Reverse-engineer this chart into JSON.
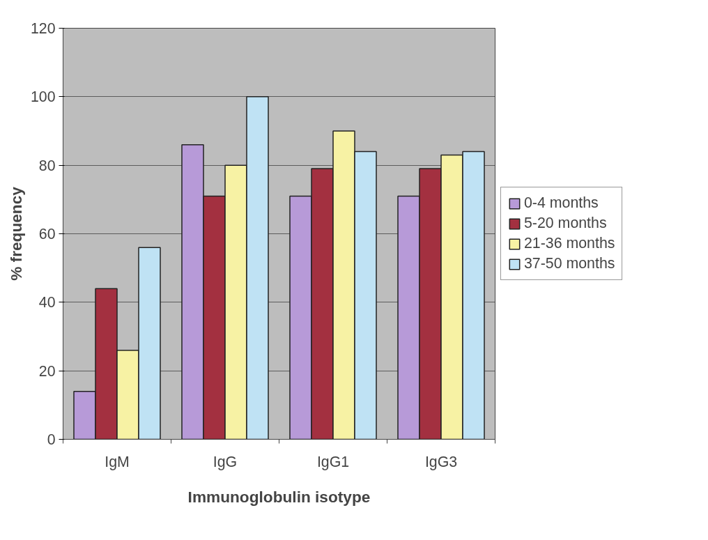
{
  "chart_data": {
    "type": "bar",
    "xlabel": "Immunoglobulin isotype",
    "ylabel": "% frequency",
    "categories": [
      "IgM",
      "IgG",
      "IgG1",
      "IgG3"
    ],
    "series": [
      {
        "name": "0-4 months",
        "color": "#b79ad8",
        "values": [
          14,
          86,
          71,
          71
        ]
      },
      {
        "name": "5-20 months",
        "color": "#a33040",
        "values": [
          44,
          71,
          79,
          79
        ]
      },
      {
        "name": "21-36 months",
        "color": "#f7f2a4",
        "values": [
          26,
          80,
          90,
          83
        ]
      },
      {
        "name": "37-50 months",
        "color": "#bfe2f4",
        "values": [
          56,
          100,
          84,
          84
        ]
      }
    ],
    "ylim": [
      0,
      120
    ],
    "yticks": [
      0,
      20,
      40,
      60,
      80,
      100,
      120
    ],
    "grid": "y",
    "legend": "right"
  }
}
